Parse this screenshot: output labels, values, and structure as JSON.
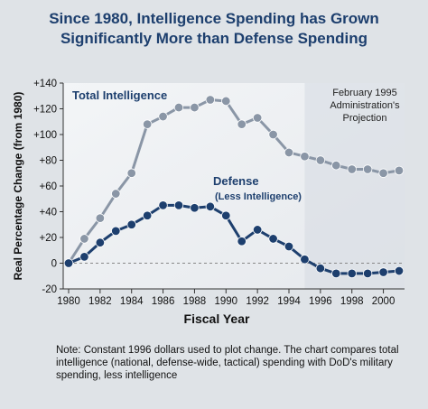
{
  "title_line1": "Since 1980, Intelligence Spending has Grown",
  "title_line2": "Significantly More than Defense Spending",
  "note_label": "Note:",
  "note_text": "Constant 1996 dollars used to plot change. The chart compares total intelligence (national, defense-wide, tactical) spending with DoD's military spending, less intelligence",
  "chart_data": {
    "type": "line",
    "title": "Since 1980, Intelligence Spending has Grown Significantly More than Defense Spending",
    "xlabel": "Fiscal Year",
    "ylabel": "Real Percentage Change (from 1980)",
    "xlim": [
      1980,
      2001
    ],
    "ylim": [
      -20,
      140
    ],
    "x_ticks": [
      1980,
      1982,
      1984,
      1986,
      1988,
      1990,
      1992,
      1994,
      1996,
      1998,
      2000
    ],
    "y_ticks": [
      -20,
      0,
      20,
      40,
      60,
      80,
      100,
      120,
      140
    ],
    "y_tick_labels": [
      "-20",
      "0",
      "+20",
      "+40",
      "+60",
      "+80",
      "+100",
      "+120",
      "+140"
    ],
    "x": [
      1980,
      1981,
      1982,
      1983,
      1984,
      1985,
      1986,
      1987,
      1988,
      1989,
      1990,
      1991,
      1992,
      1993,
      1994,
      1995,
      1996,
      1997,
      1998,
      1999,
      2000,
      2001
    ],
    "series": [
      {
        "name": "Total Intelligence",
        "color": "#8a96a6",
        "values": [
          0,
          19,
          35,
          54,
          70,
          108,
          114,
          121,
          121,
          127,
          126,
          108,
          113,
          100,
          86,
          83,
          80,
          76,
          73,
          73,
          70,
          72
        ]
      },
      {
        "name": "Defense",
        "sublabel": "(Less Intelligence)",
        "color": "#1d3f6e",
        "values": [
          0,
          5,
          16,
          25,
          30,
          37,
          45,
          45,
          43,
          44,
          37,
          17,
          26,
          19,
          13,
          3,
          -4,
          -8,
          -8,
          -8,
          -7,
          -6
        ]
      }
    ],
    "annotation": "February 1995 Administration's Projection",
    "projection_start": 1995,
    "grid": false
  }
}
